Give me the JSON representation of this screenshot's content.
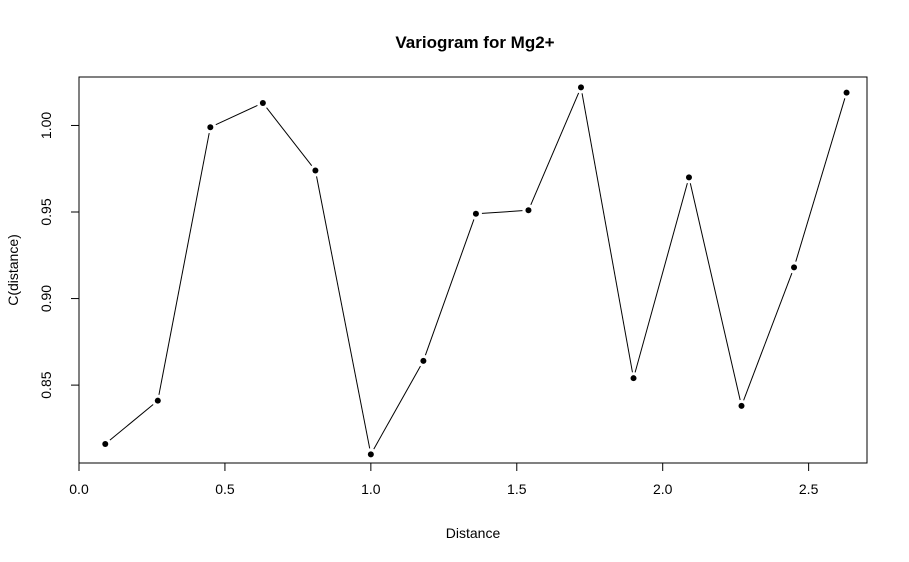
{
  "chart_data": {
    "type": "line",
    "title": "Variogram for Mg2+",
    "xlabel": "Distance",
    "ylabel": "C(distance)",
    "xlim": [
      0.0,
      2.7
    ],
    "ylim": [
      0.805,
      1.028
    ],
    "x_ticks": [
      0.0,
      0.5,
      1.0,
      1.5,
      2.0,
      2.5
    ],
    "x_tick_labels": [
      "0.0",
      "0.5",
      "1.0",
      "1.5",
      "2.0",
      "2.5"
    ],
    "y_ticks": [
      0.85,
      0.9,
      0.95,
      1.0
    ],
    "y_tick_labels": [
      "0.85",
      "0.90",
      "0.95",
      "1.00"
    ],
    "grid": false,
    "series": [
      {
        "x": [
          0.09,
          0.27,
          0.45,
          0.63,
          0.81,
          1.0,
          1.18,
          1.36,
          1.54,
          1.72,
          1.9,
          2.09,
          2.27,
          2.45,
          2.63
        ],
        "y": [
          0.816,
          0.841,
          0.999,
          1.013,
          0.974,
          0.81,
          0.864,
          0.949,
          0.951,
          1.022,
          0.854,
          0.97,
          0.838,
          0.918,
          1.019
        ]
      }
    ]
  }
}
